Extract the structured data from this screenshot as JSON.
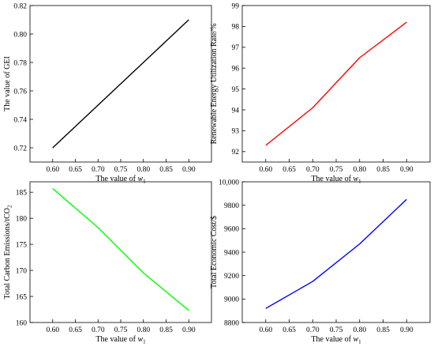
{
  "chart_data": [
    {
      "type": "line",
      "x": [
        0.6,
        0.7,
        0.8,
        0.9
      ],
      "series": [
        {
          "values": [
            0.72,
            0.75,
            0.78,
            0.81
          ],
          "color": "#000000"
        }
      ],
      "xlabel_prefix": "The value of ",
      "xlabel_var": "w",
      "xlabel_sub": "1",
      "ylabel": "The value of GEI",
      "xlim": [
        0.55,
        0.95
      ],
      "ylim": [
        0.71,
        0.82
      ],
      "xticks": [
        "0.60",
        "0.65",
        "0.70",
        "0.75",
        "0.80",
        "0.85",
        "0.90"
      ],
      "yticks": [
        "0.72",
        "0.74",
        "0.76",
        "0.78",
        "0.80",
        "0.82"
      ],
      "grid": false
    },
    {
      "type": "line",
      "x": [
        0.6,
        0.7,
        0.8,
        0.9
      ],
      "series": [
        {
          "values": [
            92.3,
            94.1,
            96.5,
            98.2
          ],
          "color": "#ff0000"
        }
      ],
      "xlabel_prefix": "The value of ",
      "xlabel_var": "w",
      "xlabel_sub": "1",
      "ylabel": "Renewable Energy Utilization Rate/%",
      "xlim": [
        0.55,
        0.95
      ],
      "ylim": [
        91.5,
        99
      ],
      "xticks": [
        "0.60",
        "0.65",
        "0.70",
        "0.75",
        "0.80",
        "0.85",
        "0.90"
      ],
      "yticks": [
        "92",
        "93",
        "94",
        "95",
        "96",
        "97",
        "98",
        "99"
      ],
      "grid": false
    },
    {
      "type": "line",
      "x": [
        0.6,
        0.7,
        0.8,
        0.9
      ],
      "series": [
        {
          "values": [
            185.7,
            178.2,
            169.5,
            162.3
          ],
          "color": "#00ff00"
        }
      ],
      "xlabel_prefix": "The value of ",
      "xlabel_var": "w",
      "xlabel_sub": "1",
      "ylabel": "Total Carbon Emissions/tCO",
      "ylabel_sub": "2",
      "xlim": [
        0.55,
        0.95
      ],
      "ylim": [
        160,
        187
      ],
      "xticks": [
        "0.60",
        "0.65",
        "0.70",
        "0.75",
        "0.80",
        "0.85",
        "0.90"
      ],
      "yticks": [
        "160",
        "165",
        "170",
        "175",
        "180",
        "185"
      ],
      "grid": false
    },
    {
      "type": "line",
      "x": [
        0.6,
        0.7,
        0.8,
        0.9
      ],
      "series": [
        {
          "values": [
            8920,
            9150,
            9470,
            9850
          ],
          "color": "#0000ff"
        }
      ],
      "xlabel_prefix": "The value of ",
      "xlabel_var": "w",
      "xlabel_sub": "1",
      "ylabel": "Total Economic Cost/$",
      "xlim": [
        0.55,
        0.95
      ],
      "ylim": [
        8800,
        10000
      ],
      "xticks": [
        "0.60",
        "0.65",
        "0.70",
        "0.75",
        "0.80",
        "0.85",
        "0.90"
      ],
      "yticks": [
        "8800",
        "9000",
        "9200",
        "9400",
        "9600",
        "9800",
        "10,000"
      ],
      "grid": false
    }
  ]
}
